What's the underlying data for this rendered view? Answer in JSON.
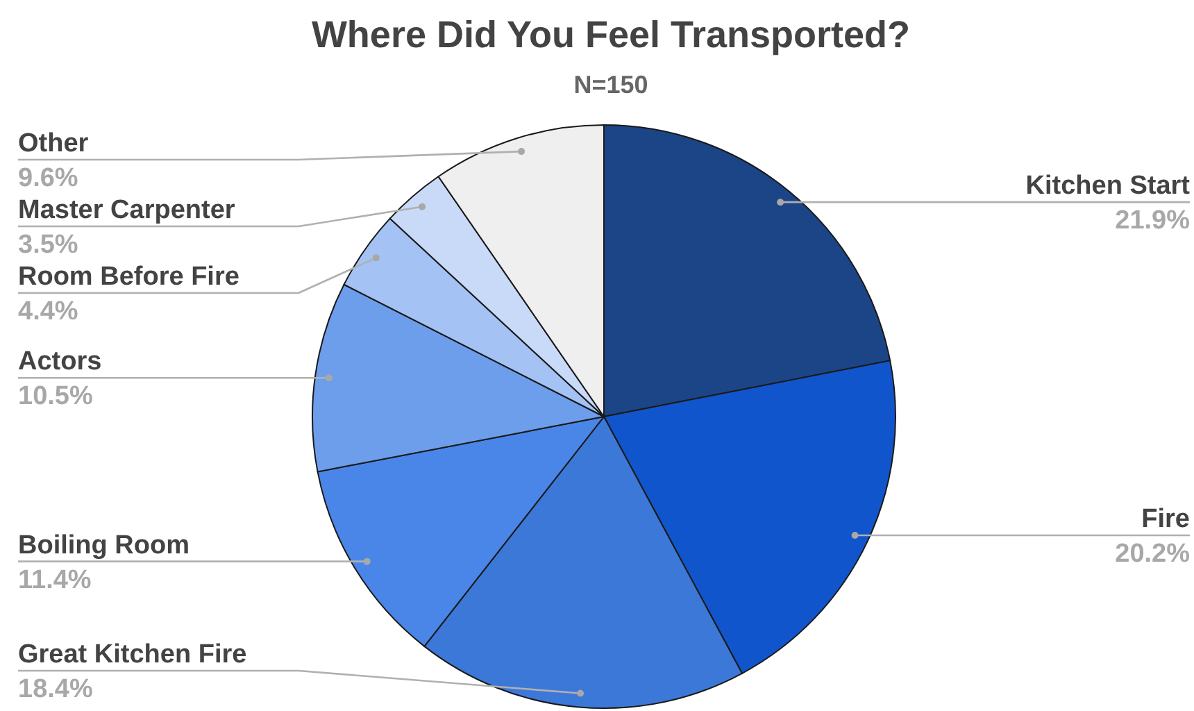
{
  "chart_data": {
    "type": "pie",
    "title": "Where Did You Feel Transported?",
    "subtitle": "N=150",
    "categories": [
      "Kitchen Start",
      "Fire",
      "Great Kitchen Fire",
      "Boiling Room",
      "Actors",
      "Room Before Fire",
      "Master Carpenter",
      "Other"
    ],
    "values": [
      21.9,
      20.2,
      18.4,
      11.4,
      10.5,
      4.4,
      3.5,
      9.6
    ],
    "value_labels": [
      "21.9%",
      "20.2%",
      "18.4%",
      "11.4%",
      "10.5%",
      "4.4%",
      "3.5%",
      "9.6%"
    ],
    "colors": [
      "#1c4587",
      "#1155cc",
      "#3c78d8",
      "#4a86e8",
      "#6d9eeb",
      "#a4c2f4",
      "#c9daf8",
      "#efefef"
    ]
  }
}
